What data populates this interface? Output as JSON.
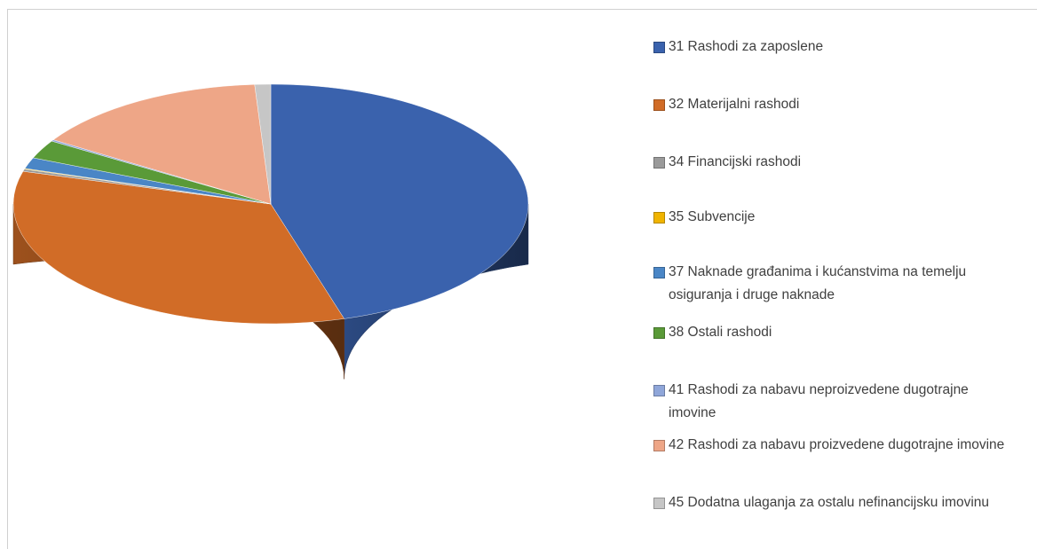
{
  "chart_data": {
    "type": "pie",
    "three_d": true,
    "categories": [
      "31 Rashodi za zaposlene",
      "32 Materijalni rashodi",
      "34 Financijski rashodi",
      "35 Subvencije",
      "37 Naknade građanima i kućanstvima na temelju osiguranja i druge naknade",
      "38 Ostali rashodi",
      "41 Rashodi za nabavu neproizvedene dugotrajne imovine",
      "42 Rashodi za nabavu proizvedene dugotrajne imovine",
      "45 Dodatna ulaganja za ostalu nefinancijsku imovinu"
    ],
    "values": [
      45.4,
      34,
      0.3,
      0.1,
      1.5,
      2.5,
      0.2,
      15,
      1
    ],
    "colors": [
      "#3a62ad",
      "#d16c27",
      "#9a9a9a",
      "#f0b400",
      "#4a86c6",
      "#5a9a38",
      "#8fa6d9",
      "#eea687",
      "#c6c6c6"
    ],
    "legend": "right"
  }
}
